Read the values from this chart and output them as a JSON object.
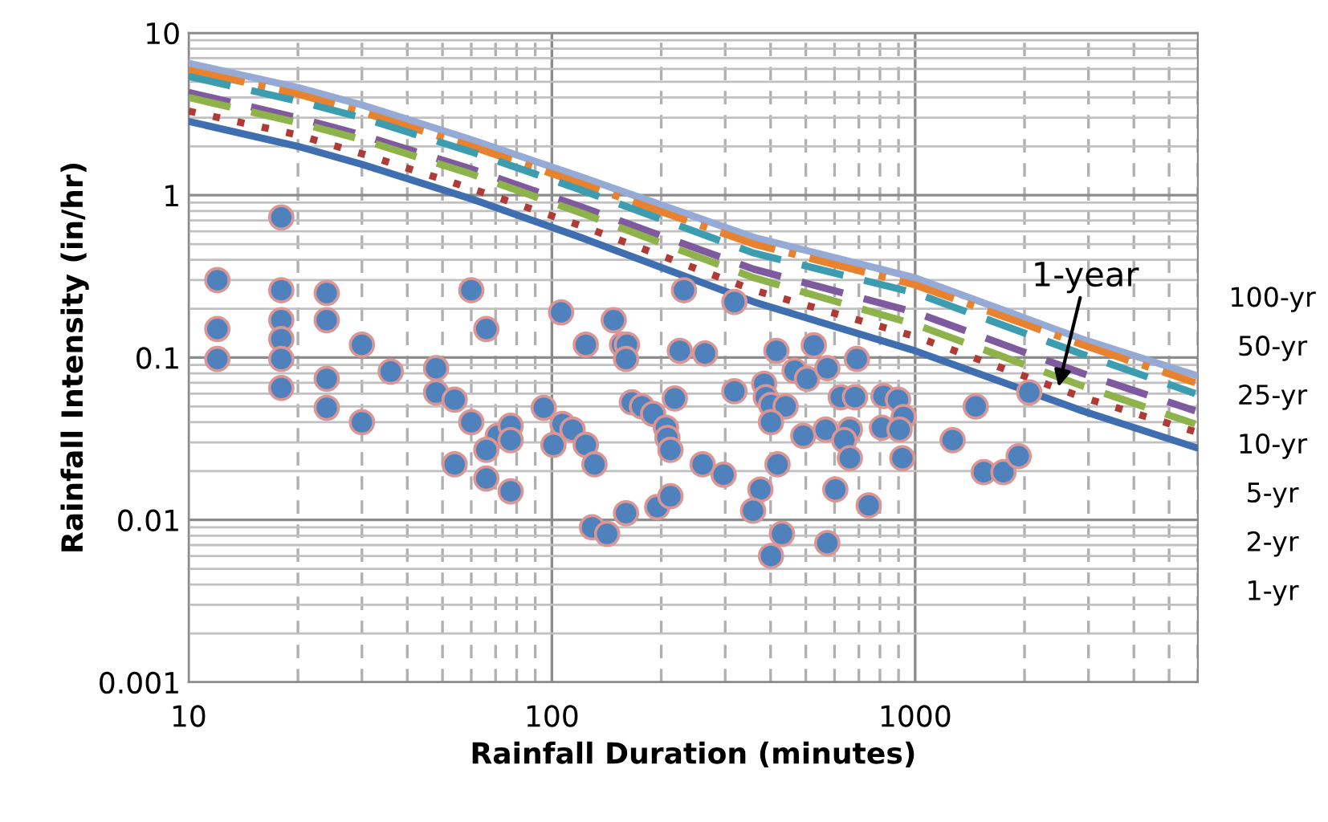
{
  "chart_data": {
    "type": "line",
    "xlabel": "Rainfall Duration (minutes)",
    "ylabel": "Rainfall Intensity (in/hr)",
    "log": "xy",
    "grid": true,
    "xlim": [
      10,
      6000
    ],
    "ylim": [
      0.001,
      10
    ],
    "xticks": [
      10,
      100,
      1000
    ],
    "yticks": [
      0.001,
      0.01,
      0.1,
      1,
      10
    ],
    "annotations": [
      {
        "text": "1-year",
        "x": 2480,
        "y": 0.066
      },
      "100-yr",
      "50-yr",
      "25-yr",
      "10-yr",
      "5-yr",
      "2-yr",
      "1-yr"
    ],
    "series": [
      {
        "color": "#95abd6",
        "line_style": "solid",
        "x": [
          10,
          20,
          30,
          60,
          120,
          360,
          1000,
          2880,
          5900
        ],
        "values": [
          6.5,
          4.6,
          3.6,
          2.2,
          1.3,
          0.55,
          0.31,
          0.13,
          0.078
        ]
      },
      {
        "color": "#e8822e",
        "line_style": "dashdot",
        "x": [
          10,
          20,
          30,
          60,
          120,
          360,
          1000,
          2880,
          5900
        ],
        "values": [
          5.9,
          4.2,
          3.25,
          2.0,
          1.18,
          0.5,
          0.28,
          0.12,
          0.07
        ]
      },
      {
        "color": "#3c9db0",
        "line_style": "dashed",
        "x": [
          10,
          20,
          30,
          60,
          120,
          360,
          1000,
          2880,
          5900
        ],
        "values": [
          5.4,
          3.8,
          3.0,
          1.85,
          1.08,
          0.44,
          0.25,
          0.105,
          0.06
        ]
      },
      {
        "color": "#7f5a9e",
        "line_style": "dashed",
        "x": [
          10,
          20,
          30,
          60,
          120,
          360,
          1000,
          2880,
          5900
        ],
        "values": [
          4.3,
          3.0,
          2.35,
          1.45,
          0.85,
          0.35,
          0.19,
          0.08,
          0.047
        ]
      },
      {
        "color": "#8db34a",
        "line_style": "dashed",
        "x": [
          10,
          20,
          30,
          60,
          120,
          360,
          1000,
          2880,
          5900
        ],
        "values": [
          4.0,
          2.8,
          2.2,
          1.35,
          0.78,
          0.31,
          0.16,
          0.067,
          0.039
        ]
      },
      {
        "color": "#b03a36",
        "line_style": "dotted",
        "x": [
          10,
          20,
          30,
          60,
          120,
          360,
          1000,
          2880,
          5900
        ],
        "values": [
          3.3,
          2.35,
          1.8,
          1.1,
          0.65,
          0.26,
          0.135,
          0.057,
          0.035
        ]
      },
      {
        "color": "#3f6fb0",
        "line_style": "solid",
        "x": [
          10,
          20,
          30,
          60,
          120,
          360,
          1000,
          2880,
          5900
        ],
        "values": [
          2.85,
          2.0,
          1.55,
          0.95,
          0.55,
          0.22,
          0.11,
          0.047,
          0.028
        ]
      },
      {
        "type": "scatter",
        "color": "#4f81bd",
        "marker": "circle",
        "x": [
          18,
          12,
          12,
          12,
          18,
          18,
          18,
          18,
          18,
          24,
          24,
          24,
          24,
          30,
          30,
          36,
          48,
          48,
          54,
          54,
          60,
          66,
          60,
          71,
          77,
          66,
          77,
          66,
          77,
          95,
          106,
          107,
          114,
          101,
          124,
          131,
          124,
          148,
          156,
          161,
          160,
          166,
          177,
          190,
          206,
          208,
          212,
          218,
          225,
          264,
          231,
          318,
          318,
          260,
          297,
          129,
          142,
          160,
          195,
          212,
          415,
          526,
          466,
          504,
          573,
          691,
          384,
          388,
          401,
          440,
          401,
          492,
          567,
          661,
          638,
          624,
          683,
          818,
          897,
          929,
          810,
          906,
          661,
          922,
          418,
          375,
          358,
          603,
          745,
          430,
          401,
          573,
          2061,
          1468,
          1268,
          1545,
          1750,
          1927
        ],
        "values": [
          0.73,
          0.3,
          0.15,
          0.098,
          0.26,
          0.17,
          0.13,
          0.098,
          0.065,
          0.25,
          0.17,
          0.074,
          0.049,
          0.12,
          0.04,
          0.082,
          0.086,
          0.061,
          0.055,
          0.022,
          0.26,
          0.15,
          0.04,
          0.033,
          0.038,
          0.027,
          0.031,
          0.018,
          0.015,
          0.049,
          0.19,
          0.039,
          0.036,
          0.029,
          0.029,
          0.022,
          0.12,
          0.17,
          0.12,
          0.12,
          0.098,
          0.053,
          0.05,
          0.045,
          0.037,
          0.032,
          0.027,
          0.056,
          0.11,
          0.106,
          0.26,
          0.22,
          0.062,
          0.022,
          0.019,
          0.009,
          0.0082,
          0.011,
          0.012,
          0.014,
          0.11,
          0.119,
          0.083,
          0.074,
          0.086,
          0.098,
          0.069,
          0.057,
          0.051,
          0.05,
          0.04,
          0.033,
          0.036,
          0.036,
          0.031,
          0.057,
          0.057,
          0.058,
          0.055,
          0.043,
          0.037,
          0.036,
          0.024,
          0.024,
          0.022,
          0.0154,
          0.0114,
          0.0154,
          0.0123,
          0.0082,
          0.006,
          0.0072,
          0.061,
          0.05,
          0.031,
          0.0197,
          0.0197,
          0.0247
        ]
      }
    ]
  }
}
